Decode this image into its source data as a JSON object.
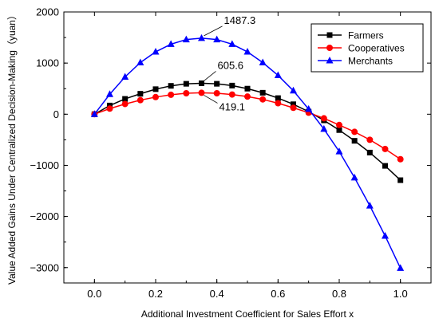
{
  "chart_data": {
    "type": "line",
    "xlabel": "Additional Investment Coefficient for Sales Effort x",
    "ylabel": "Value Added Gains Under Centralized Decision-Making（yuan）",
    "xlim": [
      -0.1,
      1.1
    ],
    "ylim": [
      -3300,
      2000
    ],
    "xticks": [
      0.0,
      0.2,
      0.4,
      0.6,
      0.8,
      1.0
    ],
    "xtick_labels": [
      "0.0",
      "0.2",
      "0.4",
      "0.6",
      "0.8",
      "1.0"
    ],
    "yticks": [
      -3000,
      -2000,
      -1000,
      0,
      1000,
      2000
    ],
    "ytick_labels": [
      "−3000",
      "−2000",
      "−1000",
      "0",
      "1000",
      "2000"
    ],
    "grid": false,
    "legend_position": "top-right",
    "x": [
      0.0,
      0.05,
      0.1,
      0.15,
      0.2,
      0.25,
      0.3,
      0.35,
      0.4,
      0.45,
      0.5,
      0.55,
      0.6,
      0.65,
      0.7,
      0.75,
      0.8,
      0.85,
      0.9,
      0.95,
      1.0
    ],
    "series": [
      {
        "name": "Farmers",
        "color": "#000000",
        "marker": "square",
        "values": [
          0,
          170,
          300,
          400,
          490,
          555,
          595,
          605.6,
          595,
          560,
          500,
          420,
          315,
          195,
          50,
          -120,
          -310,
          -520,
          -750,
          -1010,
          -1290
        ]
      },
      {
        "name": "Cooperatives",
        "color": "#ff0000",
        "marker": "circle",
        "values": [
          0,
          110,
          200,
          275,
          335,
          380,
          410,
          419.1,
          410,
          385,
          345,
          290,
          215,
          125,
          30,
          -80,
          -210,
          -345,
          -500,
          -680,
          -880
        ]
      },
      {
        "name": "Merchants",
        "color": "#0000ff",
        "marker": "triangle",
        "values": [
          0,
          390,
          730,
          1010,
          1220,
          1370,
          1460,
          1487.3,
          1460,
          1370,
          1220,
          1010,
          760,
          460,
          100,
          -290,
          -730,
          -1240,
          -1790,
          -2380,
          -3010
        ]
      }
    ],
    "annotations": [
      {
        "text": "1487.3",
        "x": 0.35,
        "y": 1487.3
      },
      {
        "text": "605.6",
        "x": 0.35,
        "y": 605.6
      },
      {
        "text": "419.1",
        "x": 0.35,
        "y": 419.1
      }
    ]
  }
}
